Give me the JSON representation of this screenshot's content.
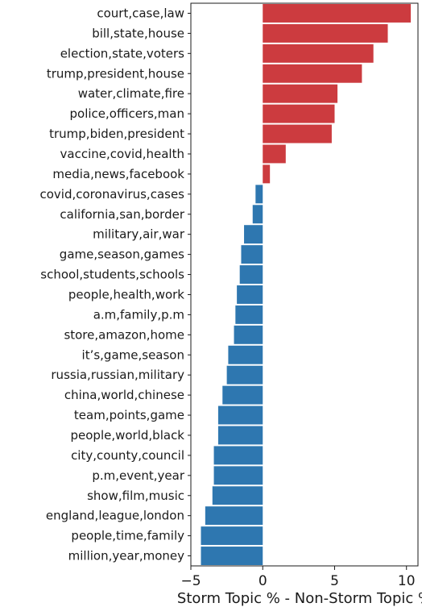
{
  "chart_data": {
    "type": "bar",
    "orientation": "horizontal",
    "xlabel": "Storm Topic % - Non-Storm Topic %",
    "ylabel": "",
    "xlim": [
      -5.0,
      10.8
    ],
    "xticks": [
      -5,
      0,
      5,
      10
    ],
    "colors": {
      "positive": "#cc3b3f",
      "negative": "#2e77b0"
    },
    "categories": [
      "court,case,law",
      "bill,state,house",
      "election,state,voters",
      "trump,president,house",
      "water,climate,fire",
      "police,officers,man",
      "trump,biden,president",
      "vaccine,covid,health",
      "media,news,facebook",
      "covid,coronavirus,cases",
      "california,san,border",
      "military,air,war",
      "game,season,games",
      "school,students,schools",
      "people,health,work",
      "a.m,family,p.m",
      "store,amazon,home",
      "it’s,game,season",
      "russia,russian,military",
      "china,world,chinese",
      "team,points,game",
      "people,world,black",
      "city,county,council",
      "p.m,event,year",
      "show,film,music",
      "england,league,london",
      "people,time,family",
      "million,year,money"
    ],
    "values": [
      10.3,
      8.7,
      7.7,
      6.9,
      5.2,
      5.0,
      4.8,
      1.6,
      0.5,
      -0.5,
      -0.7,
      -1.3,
      -1.5,
      -1.6,
      -1.8,
      -1.9,
      -2.0,
      -2.4,
      -2.5,
      -2.8,
      -3.1,
      -3.1,
      -3.4,
      -3.4,
      -3.5,
      -4.0,
      -4.3,
      -4.3
    ]
  }
}
